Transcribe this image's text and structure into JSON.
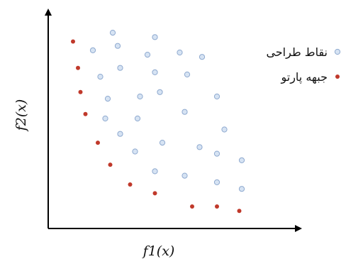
{
  "chart_data": {
    "type": "scatter",
    "title": "",
    "xlabel": "f1(x)",
    "ylabel": "f2(x)",
    "xlim": [
      0,
      10
    ],
    "ylim": [
      0,
      10
    ],
    "grid": false,
    "legend_position": "top-right",
    "colors": {
      "design_points_fill": "#d6e3f3",
      "design_points_stroke": "#8ea9cf",
      "pareto_fill": "#c0392b",
      "axis": "#000000"
    },
    "series": [
      {
        "name": "نقاط طراحی",
        "marker": "circle-light",
        "points": [
          {
            "x": 2.6,
            "y": 8.9
          },
          {
            "x": 4.3,
            "y": 8.7
          },
          {
            "x": 1.8,
            "y": 8.1
          },
          {
            "x": 2.8,
            "y": 8.3
          },
          {
            "x": 4.0,
            "y": 7.9
          },
          {
            "x": 5.3,
            "y": 8.0
          },
          {
            "x": 6.2,
            "y": 7.8
          },
          {
            "x": 2.1,
            "y": 6.9
          },
          {
            "x": 2.9,
            "y": 7.3
          },
          {
            "x": 4.3,
            "y": 7.1
          },
          {
            "x": 5.6,
            "y": 7.0
          },
          {
            "x": 2.4,
            "y": 5.9
          },
          {
            "x": 3.7,
            "y": 6.0
          },
          {
            "x": 4.5,
            "y": 6.2
          },
          {
            "x": 6.8,
            "y": 6.0
          },
          {
            "x": 2.3,
            "y": 5.0
          },
          {
            "x": 3.6,
            "y": 5.0
          },
          {
            "x": 5.5,
            "y": 5.3
          },
          {
            "x": 2.9,
            "y": 4.3
          },
          {
            "x": 4.6,
            "y": 3.9
          },
          {
            "x": 7.1,
            "y": 4.5
          },
          {
            "x": 3.5,
            "y": 3.5
          },
          {
            "x": 6.1,
            "y": 3.7
          },
          {
            "x": 6.8,
            "y": 3.4
          },
          {
            "x": 7.8,
            "y": 3.1
          },
          {
            "x": 4.3,
            "y": 2.6
          },
          {
            "x": 5.5,
            "y": 2.4
          },
          {
            "x": 6.8,
            "y": 2.1
          },
          {
            "x": 7.8,
            "y": 1.8
          }
        ]
      },
      {
        "name": "جبهه پارتو",
        "marker": "circle-red",
        "points": [
          {
            "x": 1.0,
            "y": 8.5
          },
          {
            "x": 1.2,
            "y": 7.3
          },
          {
            "x": 1.3,
            "y": 6.2
          },
          {
            "x": 1.5,
            "y": 5.2
          },
          {
            "x": 2.0,
            "y": 3.9
          },
          {
            "x": 2.5,
            "y": 2.9
          },
          {
            "x": 3.3,
            "y": 2.0
          },
          {
            "x": 4.3,
            "y": 1.6
          },
          {
            "x": 5.8,
            "y": 1.0
          },
          {
            "x": 6.8,
            "y": 1.0
          },
          {
            "x": 7.7,
            "y": 0.8
          }
        ]
      }
    ]
  }
}
